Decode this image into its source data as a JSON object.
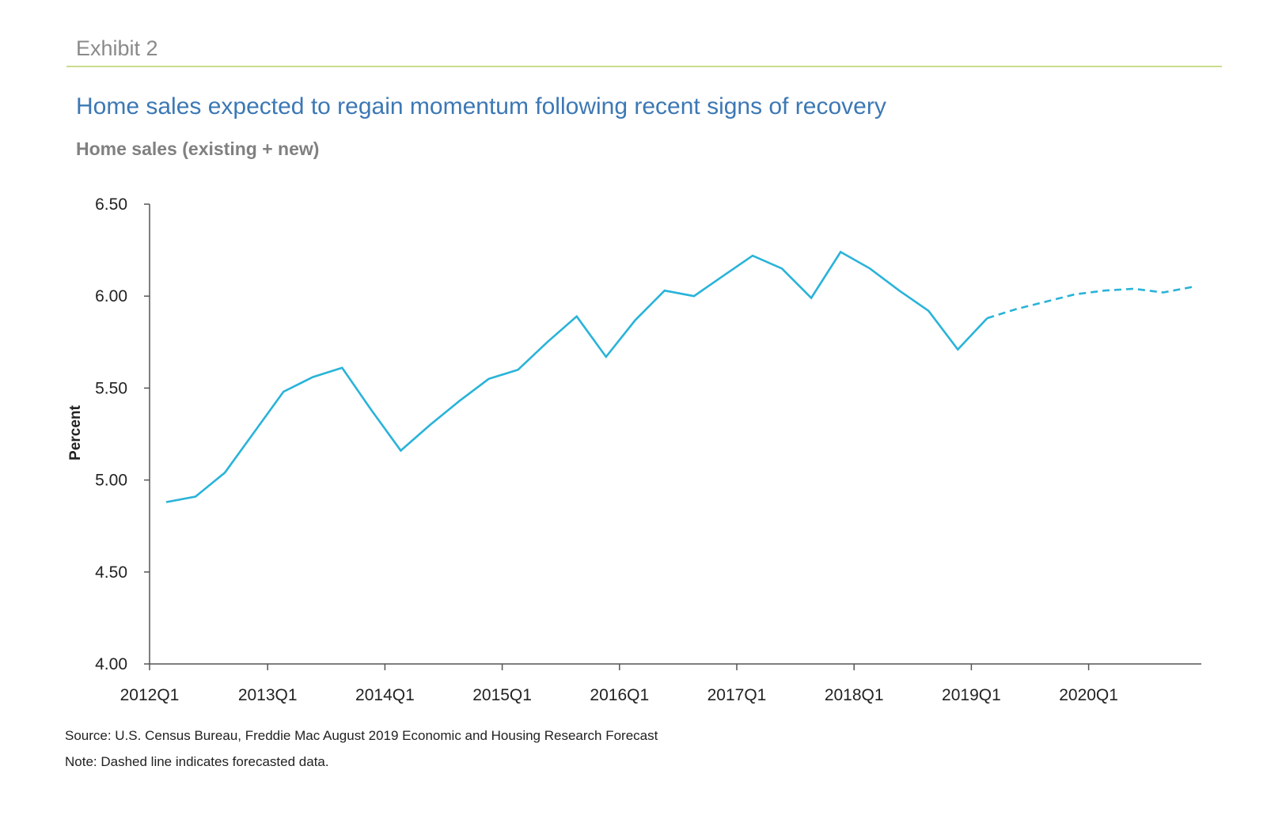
{
  "header": {
    "exhibit": "Exhibit 2",
    "title": "Home sales expected to regain momentum following recent signs of recovery",
    "subtitle": "Home sales (existing + new)"
  },
  "footer": {
    "source": "Source: U.S. Census Bureau, Freddie Mac August 2019 Economic and Housing Research Forecast",
    "note": "Note: Dashed line indicates forecasted data."
  },
  "colors": {
    "line": "#29b3d9",
    "title": "#3c78b4",
    "rule": "#c9dc8f",
    "axis": "#555555"
  },
  "chart_data": {
    "type": "line",
    "ylabel": "Percent",
    "ylim": [
      4.0,
      6.5
    ],
    "yticks": [
      "4.00",
      "4.50",
      "5.00",
      "5.50",
      "6.00",
      "6.50"
    ],
    "xtick_labels": [
      "2012Q1",
      "2013Q1",
      "2014Q1",
      "2015Q1",
      "2016Q1",
      "2017Q1",
      "2018Q1",
      "2019Q1",
      "2020Q1"
    ],
    "categories": [
      "2012Q1",
      "2012Q2",
      "2012Q3",
      "2012Q4",
      "2013Q1",
      "2013Q2",
      "2013Q3",
      "2013Q4",
      "2014Q1",
      "2014Q2",
      "2014Q3",
      "2014Q4",
      "2015Q1",
      "2015Q2",
      "2015Q3",
      "2015Q4",
      "2016Q1",
      "2016Q2",
      "2016Q3",
      "2016Q4",
      "2017Q1",
      "2017Q2",
      "2017Q3",
      "2017Q4",
      "2018Q1",
      "2018Q2",
      "2018Q3",
      "2018Q4",
      "2019Q1",
      "2019Q2",
      "2019Q3",
      "2019Q4",
      "2020Q1",
      "2020Q2",
      "2020Q3",
      "2020Q4"
    ],
    "series": [
      {
        "style": "solid",
        "values": [
          4.88,
          4.91,
          5.04,
          5.26,
          5.48,
          5.56,
          5.61,
          5.38,
          5.16,
          5.3,
          5.43,
          5.55,
          5.6,
          5.75,
          5.89,
          5.67,
          5.87,
          6.03,
          6.0,
          6.11,
          6.22,
          6.15,
          5.99,
          6.24,
          6.15,
          6.03,
          5.92,
          5.71,
          5.88,
          null,
          null,
          null,
          null,
          null,
          null,
          null
        ]
      },
      {
        "style": "dashed",
        "values": [
          null,
          null,
          null,
          null,
          null,
          null,
          null,
          null,
          null,
          null,
          null,
          null,
          null,
          null,
          null,
          null,
          null,
          null,
          null,
          null,
          null,
          null,
          null,
          null,
          null,
          null,
          null,
          null,
          5.88,
          5.93,
          5.97,
          6.01,
          6.03,
          6.04,
          6.02,
          6.05
        ]
      }
    ]
  }
}
